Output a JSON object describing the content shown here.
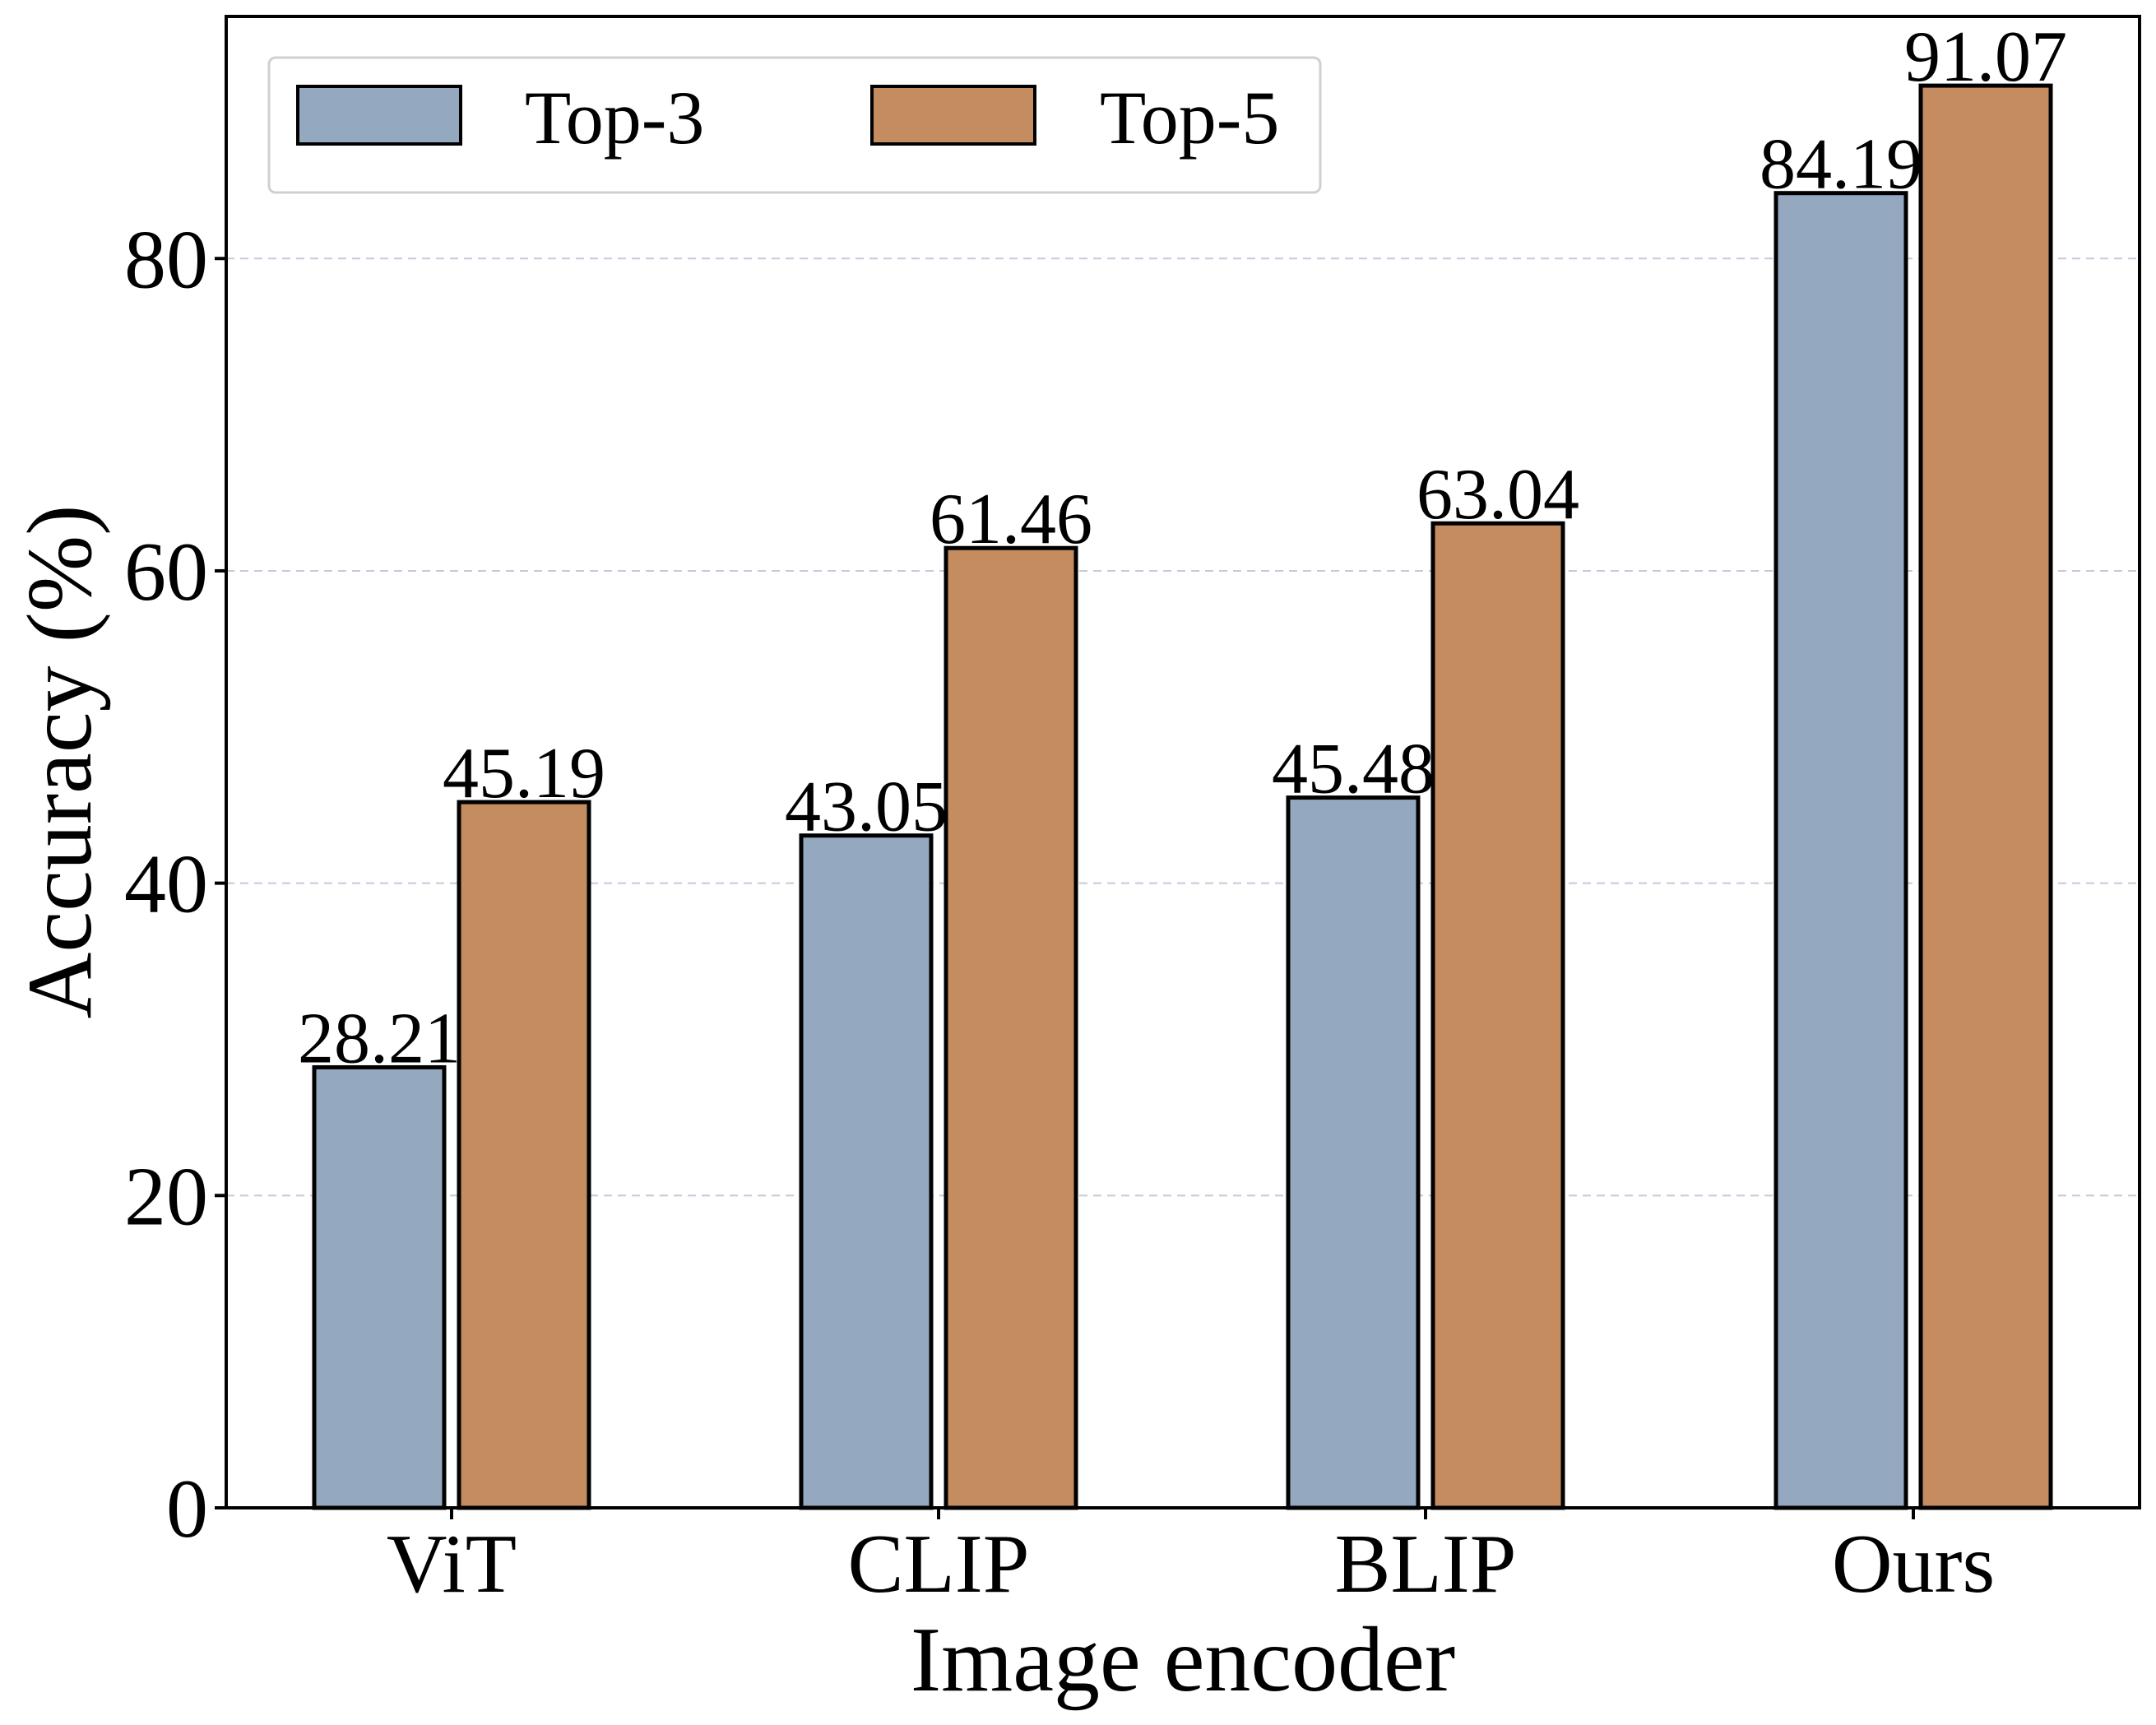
{
  "chart_data": {
    "type": "bar",
    "title": "",
    "xlabel": "Image encoder",
    "ylabel": "Accuracy (%)",
    "categories": [
      "ViT",
      "CLIP",
      "BLIP",
      "Ours"
    ],
    "series": [
      {
        "name": "Top-3",
        "values": [
          28.21,
          43.05,
          45.48,
          84.19
        ],
        "labels": [
          "28.21",
          "43.05",
          "45.48",
          "84.19"
        ],
        "color": "#94a8c0"
      },
      {
        "name": "Top-5",
        "values": [
          45.19,
          61.46,
          63.04,
          91.07
        ],
        "labels": [
          "45.19",
          "61.46",
          "63.04",
          "91.07"
        ],
        "color": "#c58c60"
      }
    ],
    "ylim": [
      0,
      95.5
    ],
    "yticks": [
      0,
      20,
      40,
      60,
      80
    ],
    "ytick_labels": [
      "0",
      "20",
      "40",
      "60",
      "80"
    ],
    "grid": "horizontal dashed",
    "grid_color": "#c8c8dc",
    "legend_position": "top-left",
    "legend_columns": 2
  }
}
